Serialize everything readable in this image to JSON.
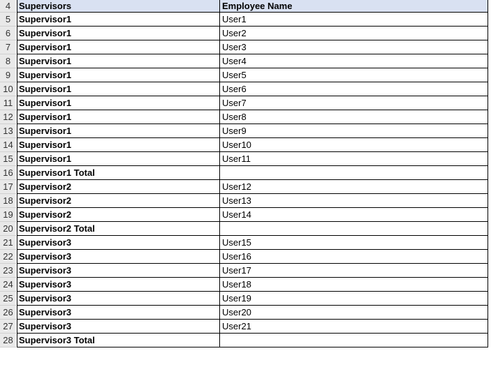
{
  "header": {
    "row_number": "4",
    "col_a": "Supervisors",
    "col_b": "Employee Name"
  },
  "header_fill": "#d9e1f2",
  "rows": [
    {
      "n": "5",
      "a": "Supervisor1",
      "b": "User1"
    },
    {
      "n": "6",
      "a": "Supervisor1",
      "b": "User2"
    },
    {
      "n": "7",
      "a": "Supervisor1",
      "b": "User3"
    },
    {
      "n": "8",
      "a": "Supervisor1",
      "b": "User4"
    },
    {
      "n": "9",
      "a": "Supervisor1",
      "b": "User5"
    },
    {
      "n": "10",
      "a": "Supervisor1",
      "b": "User6"
    },
    {
      "n": "11",
      "a": "Supervisor1",
      "b": "User7"
    },
    {
      "n": "12",
      "a": "Supervisor1",
      "b": "User8"
    },
    {
      "n": "13",
      "a": "Supervisor1",
      "b": "User9"
    },
    {
      "n": "14",
      "a": "Supervisor1",
      "b": "User10"
    },
    {
      "n": "15",
      "a": "Supervisor1",
      "b": "User11"
    },
    {
      "n": "16",
      "a": "Supervisor1 Total",
      "b": ""
    },
    {
      "n": "17",
      "a": "Supervisor2",
      "b": "User12"
    },
    {
      "n": "18",
      "a": "Supervisor2",
      "b": "User13"
    },
    {
      "n": "19",
      "a": "Supervisor2",
      "b": "User14"
    },
    {
      "n": "20",
      "a": "Supervisor2 Total",
      "b": ""
    },
    {
      "n": "21",
      "a": "Supervisor3",
      "b": "User15"
    },
    {
      "n": "22",
      "a": "Supervisor3",
      "b": "User16"
    },
    {
      "n": "23",
      "a": "Supervisor3",
      "b": "User17"
    },
    {
      "n": "24",
      "a": "Supervisor3",
      "b": "User18"
    },
    {
      "n": "25",
      "a": "Supervisor3",
      "b": "User19"
    },
    {
      "n": "26",
      "a": "Supervisor3",
      "b": "User20"
    },
    {
      "n": "27",
      "a": "Supervisor3",
      "b": "User21"
    },
    {
      "n": "28",
      "a": "Supervisor3 Total",
      "b": ""
    }
  ]
}
